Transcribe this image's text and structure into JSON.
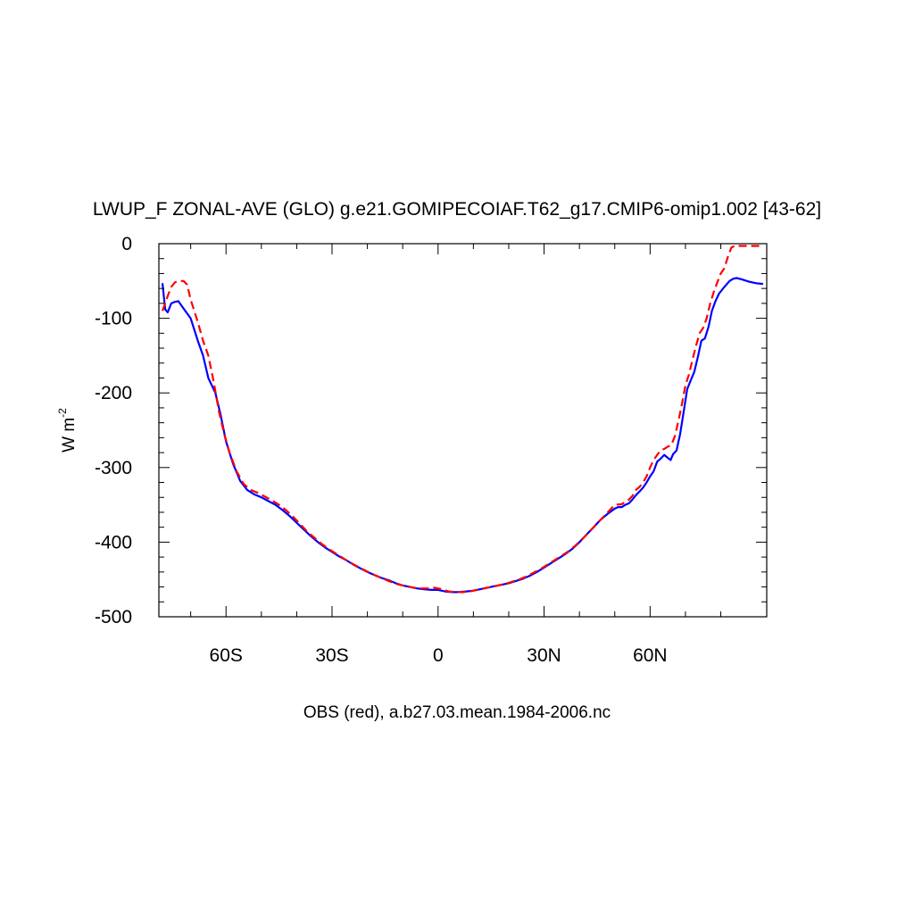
{
  "chart_data": {
    "type": "line",
    "title": "LWUP_F ZONAL-AVE (GLO) g.e21.GOMIPECOIAF.T62_g17.CMIP6-omip1.002 [43-62]",
    "ylabel_main": "W m",
    "ylabel_sup": "-2",
    "footer": "OBS (red), a.b27.03.mean.1984-2006.nc",
    "xlim": [
      -79,
      93
    ],
    "ylim": [
      -500,
      0
    ],
    "xticks": [
      {
        "value": -60,
        "label": "60S"
      },
      {
        "value": -30,
        "label": "30S"
      },
      {
        "value": 0,
        "label": "0"
      },
      {
        "value": 30,
        "label": "30N"
      },
      {
        "value": 60,
        "label": "60N"
      }
    ],
    "yticks": [
      {
        "value": 0,
        "label": "0"
      },
      {
        "value": -100,
        "label": "-100"
      },
      {
        "value": -200,
        "label": "-200"
      },
      {
        "value": -300,
        "label": "-300"
      },
      {
        "value": -400,
        "label": "-400"
      },
      {
        "value": -500,
        "label": "-500"
      }
    ],
    "series": [
      {
        "color": "#0000ff",
        "dash": "solid",
        "points": [
          [
            -78,
            -53
          ],
          [
            -77.2,
            -88
          ],
          [
            -76.5,
            -92
          ],
          [
            -75.5,
            -80
          ],
          [
            -74.5,
            -78
          ],
          [
            -73.5,
            -77
          ],
          [
            -72,
            -87
          ],
          [
            -70,
            -100
          ],
          [
            -68,
            -130
          ],
          [
            -66.5,
            -150
          ],
          [
            -65,
            -180
          ],
          [
            -63,
            -200
          ],
          [
            -61.5,
            -230
          ],
          [
            -60,
            -265
          ],
          [
            -58,
            -295
          ],
          [
            -56,
            -318
          ],
          [
            -54,
            -330
          ],
          [
            -52,
            -336
          ],
          [
            -50,
            -340
          ],
          [
            -48,
            -345
          ],
          [
            -46,
            -350
          ],
          [
            -44,
            -357
          ],
          [
            -42,
            -365
          ],
          [
            -40,
            -374
          ],
          [
            -38,
            -383
          ],
          [
            -36,
            -392
          ],
          [
            -34,
            -400
          ],
          [
            -32,
            -407
          ],
          [
            -30,
            -413
          ],
          [
            -28,
            -419
          ],
          [
            -26,
            -424
          ],
          [
            -24,
            -430
          ],
          [
            -22,
            -435
          ],
          [
            -20,
            -440
          ],
          [
            -18,
            -444
          ],
          [
            -16,
            -448
          ],
          [
            -14,
            -451
          ],
          [
            -12,
            -455
          ],
          [
            -10,
            -458
          ],
          [
            -8,
            -460
          ],
          [
            -6,
            -462
          ],
          [
            -4,
            -463
          ],
          [
            -2,
            -464
          ],
          [
            0,
            -464
          ],
          [
            2,
            -466
          ],
          [
            4,
            -467
          ],
          [
            6,
            -467
          ],
          [
            8,
            -466
          ],
          [
            10,
            -465
          ],
          [
            12,
            -463
          ],
          [
            14,
            -461
          ],
          [
            16,
            -459
          ],
          [
            18,
            -457
          ],
          [
            20,
            -455
          ],
          [
            22,
            -452
          ],
          [
            24,
            -449
          ],
          [
            26,
            -445
          ],
          [
            28,
            -440
          ],
          [
            30,
            -434
          ],
          [
            32,
            -428
          ],
          [
            34,
            -422
          ],
          [
            36,
            -416
          ],
          [
            38,
            -409
          ],
          [
            40,
            -400
          ],
          [
            42,
            -390
          ],
          [
            44,
            -380
          ],
          [
            46,
            -370
          ],
          [
            48,
            -362
          ],
          [
            50,
            -355
          ],
          [
            51,
            -353
          ],
          [
            52,
            -353
          ],
          [
            53,
            -350
          ],
          [
            54,
            -348
          ],
          [
            55,
            -343
          ],
          [
            56,
            -337
          ],
          [
            57,
            -332
          ],
          [
            58,
            -327
          ],
          [
            59,
            -320
          ],
          [
            60,
            -312
          ],
          [
            61,
            -305
          ],
          [
            62,
            -292
          ],
          [
            63,
            -288
          ],
          [
            64,
            -283
          ],
          [
            65,
            -287
          ],
          [
            65.8,
            -290
          ],
          [
            66.5,
            -282
          ],
          [
            67.5,
            -277
          ],
          [
            68.5,
            -255
          ],
          [
            69.5,
            -225
          ],
          [
            70.5,
            -195
          ],
          [
            71.5,
            -183
          ],
          [
            72.5,
            -172
          ],
          [
            73.5,
            -152
          ],
          [
            74.5,
            -130
          ],
          [
            75.5,
            -127
          ],
          [
            76.5,
            -112
          ],
          [
            77.5,
            -90
          ],
          [
            78.5,
            -77
          ],
          [
            79.5,
            -67
          ],
          [
            81,
            -58
          ],
          [
            82.5,
            -50
          ],
          [
            83.5,
            -47
          ],
          [
            84.5,
            -46
          ],
          [
            86,
            -48
          ],
          [
            88,
            -51
          ],
          [
            90,
            -53
          ],
          [
            92,
            -54
          ]
        ]
      },
      {
        "color": "#ff0000",
        "dash": "dashed",
        "points": [
          [
            -78,
            -90
          ],
          [
            -77.2,
            -80
          ],
          [
            -76.5,
            -70
          ],
          [
            -75.5,
            -58
          ],
          [
            -74.5,
            -52
          ],
          [
            -73.5,
            -50
          ],
          [
            -72,
            -50
          ],
          [
            -71,
            -55
          ],
          [
            -70,
            -75
          ],
          [
            -69,
            -90
          ],
          [
            -68,
            -105
          ],
          [
            -66.5,
            -130
          ],
          [
            -65,
            -150
          ],
          [
            -63.5,
            -185
          ],
          [
            -62,
            -225
          ],
          [
            -60.5,
            -255
          ],
          [
            -59,
            -280
          ],
          [
            -57,
            -305
          ],
          [
            -55,
            -322
          ],
          [
            -53,
            -330
          ],
          [
            -51,
            -334
          ],
          [
            -49,
            -339
          ],
          [
            -47,
            -344
          ],
          [
            -45,
            -350
          ],
          [
            -43,
            -357
          ],
          [
            -41,
            -366
          ],
          [
            -39,
            -376
          ],
          [
            -37,
            -386
          ],
          [
            -35,
            -394
          ],
          [
            -33,
            -402
          ],
          [
            -31,
            -409
          ],
          [
            -29,
            -415
          ],
          [
            -27,
            -421
          ],
          [
            -25,
            -427
          ],
          [
            -23,
            -432
          ],
          [
            -21,
            -437
          ],
          [
            -19,
            -442
          ],
          [
            -17,
            -446
          ],
          [
            -15,
            -450
          ],
          [
            -13,
            -454
          ],
          [
            -11,
            -457
          ],
          [
            -9,
            -459
          ],
          [
            -7,
            -461
          ],
          [
            -5,
            -462
          ],
          [
            -3,
            -462
          ],
          [
            -1,
            -461
          ],
          [
            1,
            -463
          ],
          [
            3,
            -466
          ],
          [
            5,
            -467
          ],
          [
            7,
            -467
          ],
          [
            9,
            -466
          ],
          [
            11,
            -464
          ],
          [
            13,
            -462
          ],
          [
            15,
            -460
          ],
          [
            17,
            -458
          ],
          [
            19,
            -456
          ],
          [
            21,
            -453
          ],
          [
            23,
            -450
          ],
          [
            25,
            -446
          ],
          [
            27,
            -441
          ],
          [
            29,
            -436
          ],
          [
            31,
            -430
          ],
          [
            33,
            -424
          ],
          [
            35,
            -418
          ],
          [
            37,
            -412
          ],
          [
            39,
            -404
          ],
          [
            41,
            -395
          ],
          [
            43,
            -385
          ],
          [
            45,
            -375
          ],
          [
            47,
            -365
          ],
          [
            49,
            -355
          ],
          [
            50,
            -350
          ],
          [
            52,
            -349
          ],
          [
            54,
            -343
          ],
          [
            55,
            -338
          ],
          [
            56,
            -330
          ],
          [
            57,
            -326
          ],
          [
            58,
            -320
          ],
          [
            59,
            -312
          ],
          [
            60,
            -300
          ],
          [
            61,
            -290
          ],
          [
            62,
            -283
          ],
          [
            63,
            -277
          ],
          [
            64,
            -275
          ],
          [
            65,
            -272
          ],
          [
            66,
            -270
          ],
          [
            67,
            -258
          ],
          [
            68,
            -238
          ],
          [
            69,
            -215
          ],
          [
            70,
            -190
          ],
          [
            71,
            -175
          ],
          [
            72,
            -155
          ],
          [
            73,
            -137
          ],
          [
            74,
            -120
          ],
          [
            75,
            -113
          ],
          [
            76,
            -100
          ],
          [
            77,
            -80
          ],
          [
            78,
            -65
          ],
          [
            79,
            -52
          ],
          [
            80,
            -40
          ],
          [
            81,
            -33
          ],
          [
            82,
            -18
          ],
          [
            83,
            -5
          ],
          [
            84,
            -3
          ],
          [
            86,
            -3
          ],
          [
            88,
            -3
          ],
          [
            90,
            -3
          ],
          [
            92,
            -3
          ]
        ]
      }
    ]
  }
}
